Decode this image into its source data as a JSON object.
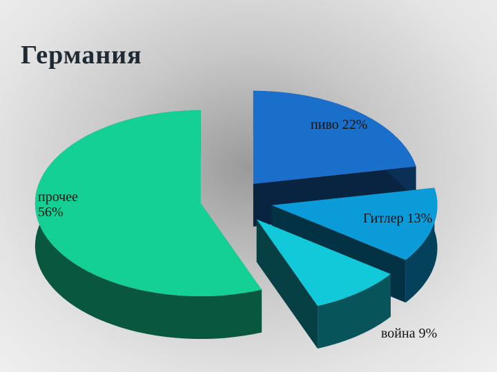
{
  "chart_data": {
    "type": "pie",
    "title": "Германия",
    "values": [
      22,
      13,
      9,
      56
    ],
    "value_labels": [
      "пиво 22%",
      "Гитлер 13%",
      "война 9%",
      "прочее 56%"
    ],
    "colors": [
      "#1a6fcb",
      "#0a9bd8",
      "#12c9d9",
      "#15d095"
    ]
  }
}
